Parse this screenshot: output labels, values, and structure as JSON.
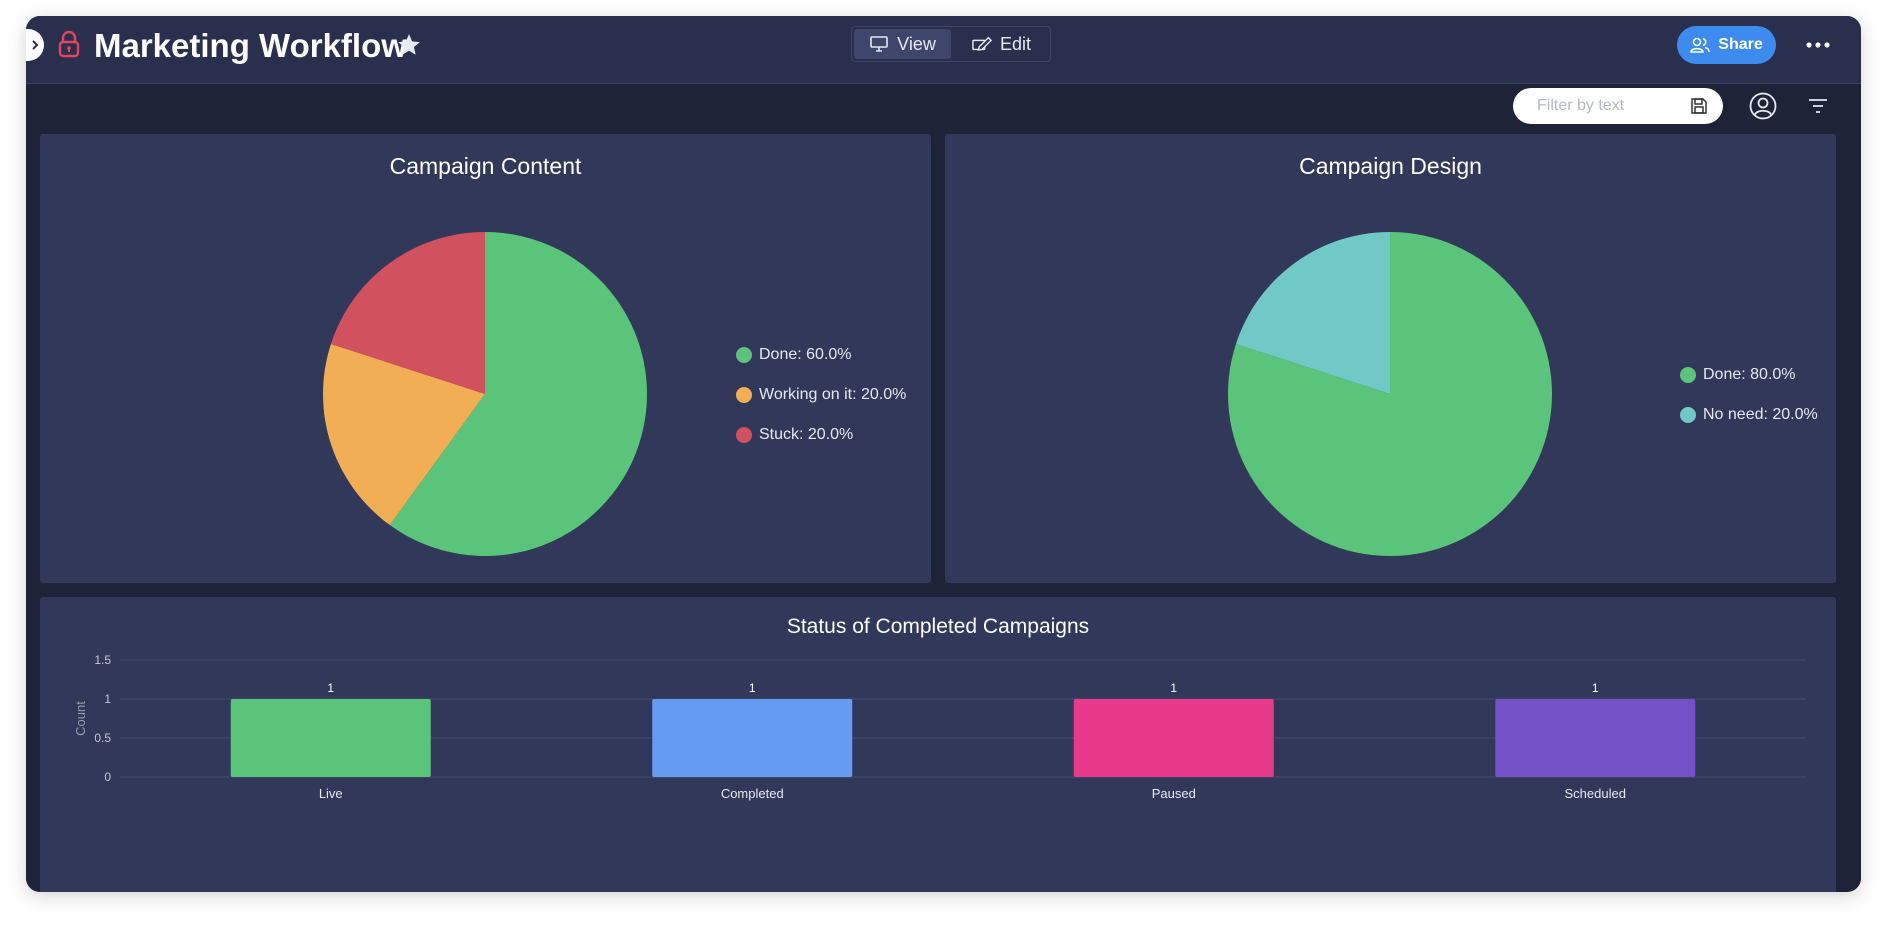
{
  "header": {
    "title": "Marketing Workflow",
    "view_label": "View",
    "edit_label": "Edit",
    "share_label": "Share",
    "lock_color": "#e2445c"
  },
  "toolbar": {
    "filter_placeholder": "Filter by text"
  },
  "colors": {
    "done": "#5ac47a",
    "working": "#f2ae55",
    "stuck": "#d2515e",
    "no_need": "#71c9c7",
    "live": "#5ac47a",
    "completed": "#659cf2",
    "paused": "#e8398a",
    "scheduled": "#7351c6"
  },
  "chart_data": [
    {
      "type": "pie",
      "title": "Campaign Content",
      "slices": [
        {
          "label": "Done",
          "value": 60.0,
          "legend": "Done: 60.0%",
          "color": "#5ac47a"
        },
        {
          "label": "Working on it",
          "value": 20.0,
          "legend": "Working on it: 20.0%",
          "color": "#f2ae55"
        },
        {
          "label": "Stuck",
          "value": 20.0,
          "legend": "Stuck: 20.0%",
          "color": "#d2515e"
        }
      ]
    },
    {
      "type": "pie",
      "title": "Campaign Design",
      "slices": [
        {
          "label": "Done",
          "value": 80.0,
          "legend": "Done: 80.0%",
          "color": "#5ac47a"
        },
        {
          "label": "No need",
          "value": 20.0,
          "legend": "No need: 20.0%",
          "color": "#71c9c7"
        }
      ]
    },
    {
      "type": "bar",
      "title": "Status of Completed Campaigns",
      "ylabel": "Count",
      "xlabel": "",
      "ylim": [
        0,
        1.5
      ],
      "yticks": [
        "0",
        "0.5",
        "1",
        "1.5"
      ],
      "categories": [
        "Live",
        "Completed",
        "Paused",
        "Scheduled"
      ],
      "values": [
        1,
        1,
        1,
        1
      ],
      "data_labels": [
        "1",
        "1",
        "1",
        "1"
      ],
      "colors": [
        "#5ac47a",
        "#659cf2",
        "#e8398a",
        "#7351c6"
      ],
      "grid": true
    }
  ]
}
